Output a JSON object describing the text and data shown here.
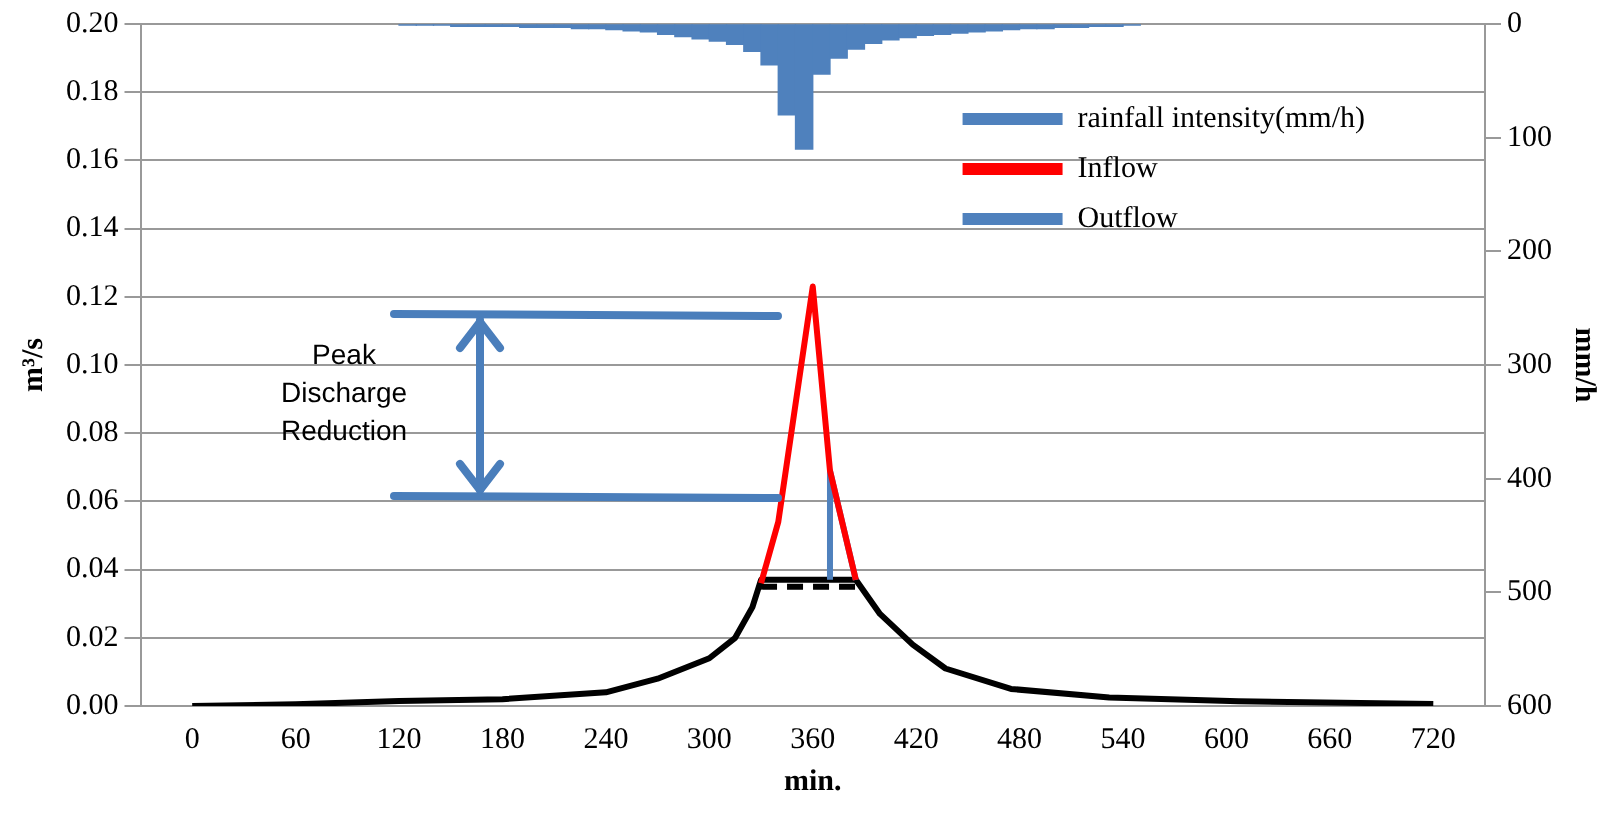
{
  "chart_data": {
    "type": "line",
    "xlabel": "min.",
    "ylabel": "m³/s",
    "y2label": "mm/h",
    "annotations": [
      "Peak Discharge Reduction"
    ],
    "xlim": [
      0,
      720
    ],
    "xticks": [
      0,
      60,
      120,
      180,
      240,
      300,
      360,
      420,
      480,
      540,
      600,
      660,
      720
    ],
    "ylim": [
      0,
      0.2
    ],
    "yticks": [
      {
        "value": 0,
        "label": "0.00"
      },
      {
        "value": 0.02,
        "label": "0.02"
      },
      {
        "value": 0.04,
        "label": "0.04"
      },
      {
        "value": 0.06,
        "label": "0.06"
      },
      {
        "value": 0.08,
        "label": "0.08"
      },
      {
        "value": 0.1,
        "label": "0.10"
      },
      {
        "value": 0.12,
        "label": "0.12"
      },
      {
        "value": 0.14,
        "label": "0.14"
      },
      {
        "value": 0.16,
        "label": "0.16"
      },
      {
        "value": 0.18,
        "label": "0.18"
      },
      {
        "value": 0.2,
        "label": "0.20"
      }
    ],
    "y2lim": [
      600,
      0
    ],
    "y2ticks": [
      0,
      100,
      200,
      300,
      400,
      500,
      600
    ],
    "grid": "y",
    "legend": "top right",
    "marker": "none",
    "series": [
      {
        "name": "rainfall intensity(mm/h)",
        "type": "bar",
        "axis": "y2",
        "color": "#4f81bd",
        "x": [
          125,
          135,
          145,
          155,
          165,
          175,
          185,
          195,
          205,
          215,
          225,
          235,
          245,
          255,
          265,
          275,
          285,
          295,
          305,
          315,
          325,
          335,
          345,
          355,
          365,
          375,
          385,
          395,
          405,
          415,
          425,
          435,
          445,
          455,
          465,
          475,
          485,
          495,
          505,
          515,
          525,
          535,
          545
        ],
        "values": [
          1,
          1,
          1,
          2,
          2,
          2,
          2,
          3,
          3,
          3,
          4,
          4,
          5,
          6,
          7,
          9,
          11,
          13,
          15,
          18,
          24,
          36,
          80,
          110,
          44,
          30,
          22,
          17,
          14,
          12,
          10,
          9,
          8,
          7,
          6,
          5,
          4,
          4,
          3,
          3,
          2,
          2,
          1
        ]
      },
      {
        "name": "Inflow",
        "color": "#ff0000",
        "x": [
          330,
          340,
          360,
          370,
          385
        ],
        "values": [
          0.036,
          0.054,
          0.123,
          0.069,
          0.037
        ]
      },
      {
        "name": "Outflow",
        "color": "#4f81bd",
        "x": [
          370,
          370,
          385
        ],
        "values": [
          0.037,
          0.069,
          0.037
        ]
      },
      {
        "color": "#000000",
        "x": [
          0,
          60,
          120,
          180,
          240,
          270,
          300,
          315,
          325,
          330,
          385,
          399,
          418,
          437,
          475,
          532,
          607,
          720
        ],
        "values": [
          0,
          0.0005,
          0.0015,
          0.002,
          0.004,
          0.008,
          0.014,
          0.02,
          0.029,
          0.037,
          0.037,
          0.027,
          0.018,
          0.011,
          0.005,
          0.0025,
          0.0014,
          0.0006
        ]
      },
      {
        "color": "#000000",
        "line_style": "dashed",
        "x": [
          330,
          385
        ],
        "values": [
          0.035,
          0.035
        ]
      }
    ]
  }
}
